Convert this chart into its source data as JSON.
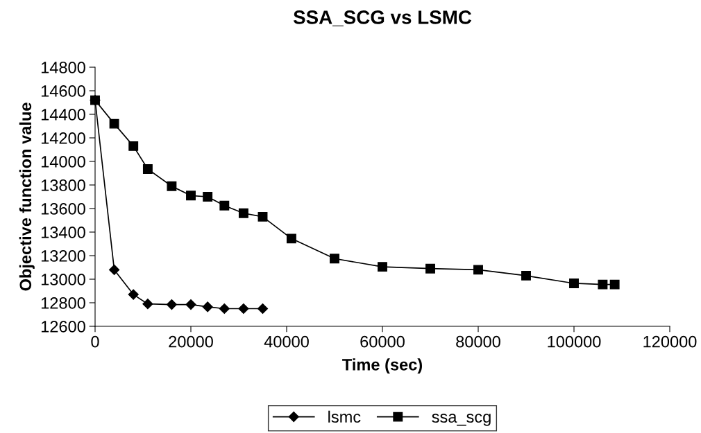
{
  "chart_data": {
    "type": "line",
    "title": "SSA_SCG vs LSMC",
    "xlabel": "Time (sec)",
    "ylabel": "Objective function value",
    "xlim": [
      0,
      120000
    ],
    "xticks": [
      0,
      20000,
      40000,
      60000,
      80000,
      100000,
      120000
    ],
    "ylim": [
      12600,
      14800
    ],
    "yticks": [
      12600,
      12800,
      13000,
      13200,
      13400,
      13600,
      13800,
      14000,
      14200,
      14400,
      14600,
      14800
    ],
    "grid": false,
    "legend": "bottom",
    "line_style": "solid",
    "series": [
      {
        "name": "lsmc",
        "color": "#000000",
        "marker": "diamond",
        "x": [
          0,
          4000,
          8000,
          11000,
          16000,
          20000,
          23500,
          27000,
          31000,
          35000
        ],
        "values": [
          14520,
          13080,
          12870,
          12790,
          12785,
          12785,
          12765,
          12750,
          12750,
          12750
        ]
      },
      {
        "name": "ssa_scg",
        "color": "#000000",
        "marker": "square",
        "x": [
          0,
          4000,
          8000,
          11000,
          16000,
          20000,
          23500,
          27000,
          31000,
          35000,
          41000,
          50000,
          60000,
          70000,
          80000,
          90000,
          100000,
          106000,
          108500
        ],
        "values": [
          14520,
          14320,
          14130,
          13935,
          13790,
          13710,
          13700,
          13625,
          13560,
          13530,
          13345,
          13175,
          13105,
          13090,
          13080,
          13030,
          12965,
          12955,
          12955
        ]
      }
    ]
  }
}
